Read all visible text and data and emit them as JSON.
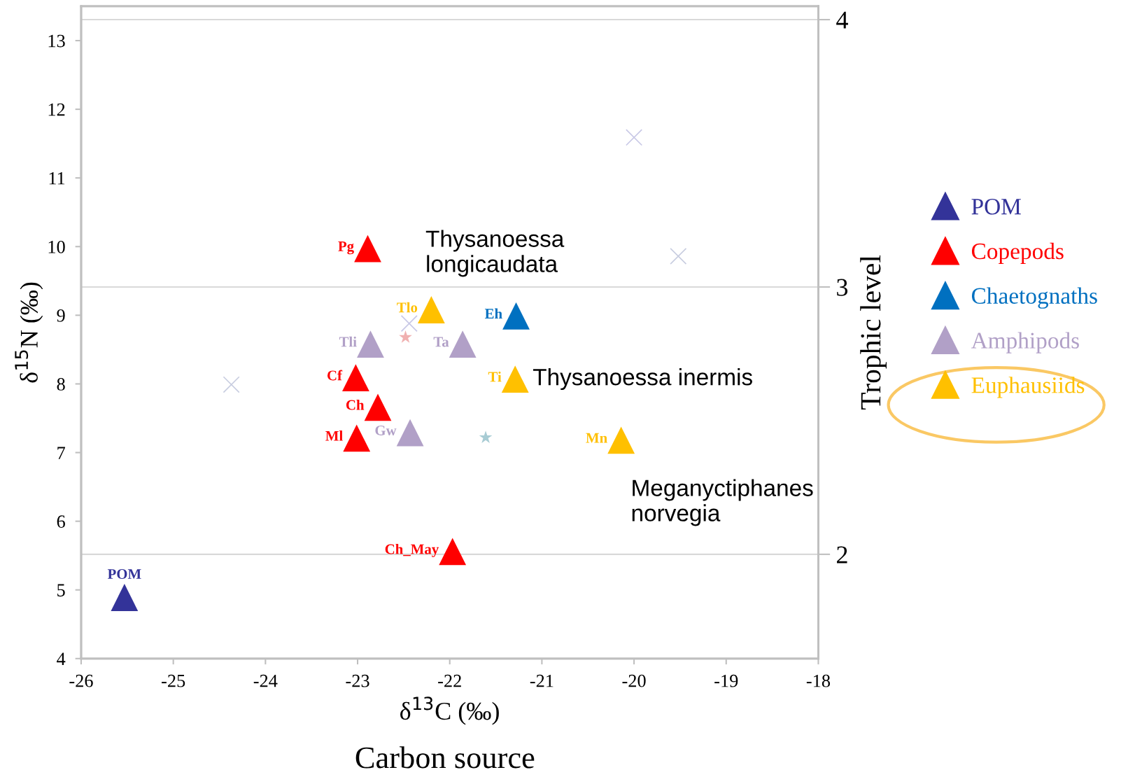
{
  "chart_data": {
    "type": "scatter",
    "xlabel": "δ$^{13}$C (‰)",
    "ylabel": "δ$^{15}$N (‰)",
    "y2label": "Trophic level",
    "xlim": [
      -26,
      -18
    ],
    "xticks": [
      -26,
      -25,
      -24,
      -23,
      -22,
      -21,
      -20,
      -19,
      -18
    ],
    "ylim": [
      4,
      13.5
    ],
    "yticks": [
      4,
      5,
      6,
      7,
      8,
      9,
      10,
      11,
      12,
      13
    ],
    "y2lim": [
      1.61,
      4.05
    ],
    "y2ticks": [
      2,
      3,
      4
    ],
    "grid": "y2",
    "legend": "right",
    "marker": "triangle",
    "series": [
      {
        "name": "POM",
        "color": "#333399",
        "x": [
          -25.53
        ],
        "values": [
          4.89
        ],
        "value_labels": [
          "POM"
        ]
      },
      {
        "name": "Copepods",
        "color": "#ff0000",
        "x": [
          -22.89,
          -23.02,
          -22.78,
          -23.01,
          -21.97
        ],
        "values": [
          9.97,
          8.09,
          7.66,
          7.21,
          5.56
        ],
        "value_labels": [
          "Pg",
          "Cf",
          "Ch",
          "Ml",
          "Ch_May"
        ]
      },
      {
        "name": "Chaetognaths",
        "color": "#0070c0",
        "x": [
          -21.28
        ],
        "values": [
          8.99
        ],
        "value_labels": [
          "Eh"
        ]
      },
      {
        "name": "Amphipods",
        "color": "#b1a0c7",
        "x": [
          -22.86,
          -21.86,
          -22.43
        ],
        "values": [
          8.58,
          8.58,
          7.29
        ],
        "value_labels": [
          "Tli",
          "Ta",
          "Gw"
        ]
      },
      {
        "name": "Euphausiids",
        "color": "#ffc000",
        "x": [
          -22.2,
          -21.29,
          -20.14
        ],
        "values": [
          9.08,
          8.07,
          7.18
        ],
        "value_labels": [
          "Tlo",
          "Ti",
          "Mn"
        ]
      },
      {
        "color": "#c8cde0",
        "marker": "cross",
        "x": [
          -24.37,
          -19.52
        ],
        "values": [
          7.99,
          9.86
        ]
      },
      {
        "color": "#c8c8e6",
        "marker": "cross",
        "x": [
          -22.44,
          -20.0
        ],
        "values": [
          8.88,
          11.59
        ]
      },
      {
        "color": "#f0b0b0",
        "marker": "star",
        "x": [
          -22.48
        ],
        "values": [
          8.68
        ]
      },
      {
        "color": "#a8ccd4",
        "marker": "star",
        "x": [
          -21.61
        ],
        "values": [
          7.22
        ]
      }
    ],
    "annotations": [
      {
        "text": "Thysanoessa\nlongicaudata",
        "x": -22.2,
        "y": 9.08
      },
      {
        "text": "Thysanoessa inermis",
        "x": -21.29,
        "y": 8.07
      },
      {
        "text": "Meganyctiphanes\nnorvegia",
        "x": -20.14,
        "y": 7.18
      },
      "Carbon source"
    ]
  }
}
